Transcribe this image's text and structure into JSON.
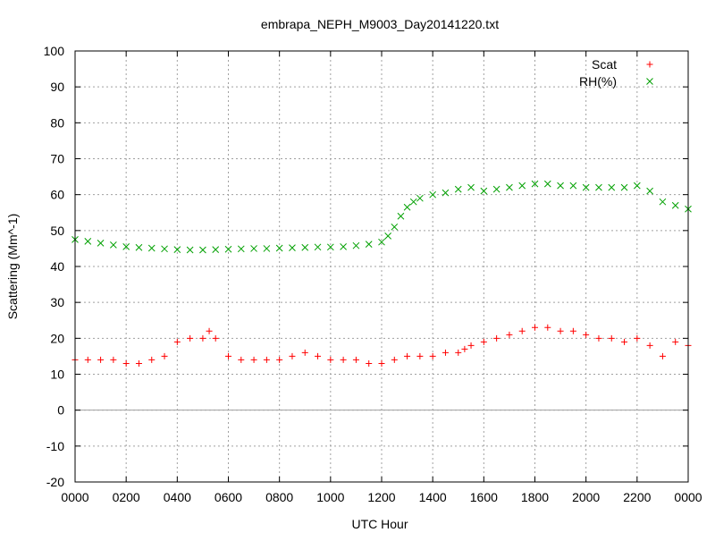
{
  "chart_data": {
    "type": "scatter",
    "title": "embrapa_NEPH_M9003_Day20141220.txt",
    "xlabel": "UTC Hour",
    "ylabel": "Scattering (Mm^-1)",
    "xlim": [
      0,
      24
    ],
    "ylim": [
      -20,
      100
    ],
    "grid": true,
    "zero_line": true,
    "legend_position": "top-right",
    "x_ticks": [
      0,
      2,
      4,
      6,
      8,
      10,
      12,
      14,
      16,
      18,
      20,
      22,
      24
    ],
    "x_tick_labels": [
      "0000",
      "0200",
      "0400",
      "0600",
      "0800",
      "1000",
      "1200",
      "1400",
      "1600",
      "1800",
      "2000",
      "2200",
      "0000"
    ],
    "y_ticks": [
      -20,
      -10,
      0,
      10,
      20,
      30,
      40,
      50,
      60,
      70,
      80,
      90,
      100
    ],
    "y_tick_labels": [
      "-20",
      "-10",
      "0",
      "10",
      "20",
      "30",
      "40",
      "50",
      "60",
      "70",
      "80",
      "90",
      "100"
    ],
    "series": [
      {
        "name": "Scat",
        "marker": "plus",
        "color": "#ff0000",
        "x": [
          0,
          0.5,
          1,
          1.5,
          2,
          2.5,
          3,
          3.5,
          4,
          4.5,
          5,
          5.25,
          5.5,
          6,
          6.5,
          7,
          7.5,
          8,
          8.5,
          9,
          9.5,
          10,
          10.5,
          11,
          11.5,
          12,
          12.5,
          13,
          13.5,
          14,
          14.5,
          15,
          15.25,
          15.5,
          16,
          16.5,
          17,
          17.5,
          18,
          18.5,
          19,
          19.5,
          20,
          20.5,
          21,
          21.5,
          22,
          22.5,
          23,
          23.5,
          24
        ],
        "y": [
          14,
          14,
          14,
          14,
          13,
          13,
          14,
          15,
          19,
          20,
          20,
          22,
          20,
          15,
          14,
          14,
          14,
          14,
          15,
          16,
          15,
          14,
          14,
          14,
          13,
          13,
          14,
          15,
          15,
          15,
          16,
          16,
          17,
          18,
          19,
          20,
          21,
          22,
          23,
          23,
          22,
          22,
          21,
          20,
          20,
          19,
          20,
          18,
          15,
          19,
          18
        ]
      },
      {
        "name": "RH(%)",
        "marker": "cross",
        "color": "#00a000",
        "x": [
          0,
          0.5,
          1,
          1.5,
          2,
          2.5,
          3,
          3.5,
          4,
          4.5,
          5,
          5.5,
          6,
          6.5,
          7,
          7.5,
          8,
          8.5,
          9,
          9.5,
          10,
          10.5,
          11,
          11.5,
          12,
          12.25,
          12.5,
          12.75,
          13,
          13.25,
          13.5,
          14,
          14.5,
          15,
          15.5,
          16,
          16.5,
          17,
          17.5,
          18,
          18.5,
          19,
          19.5,
          20,
          20.5,
          21,
          21.5,
          22,
          22.5,
          23,
          23.5,
          24
        ],
        "y": [
          47.5,
          47,
          46.5,
          46,
          45.5,
          45.3,
          45.1,
          44.9,
          44.7,
          44.6,
          44.6,
          44.7,
          44.8,
          44.9,
          45,
          45,
          45.1,
          45.2,
          45.3,
          45.4,
          45.4,
          45.5,
          45.8,
          46.2,
          46.8,
          48.5,
          51,
          54,
          56.5,
          58,
          59,
          60,
          60.5,
          61.5,
          62,
          61,
          61.5,
          62,
          62.5,
          63,
          63,
          62.5,
          62.5,
          62,
          62,
          62,
          62,
          62.5,
          61,
          58,
          57,
          56
        ]
      }
    ]
  }
}
